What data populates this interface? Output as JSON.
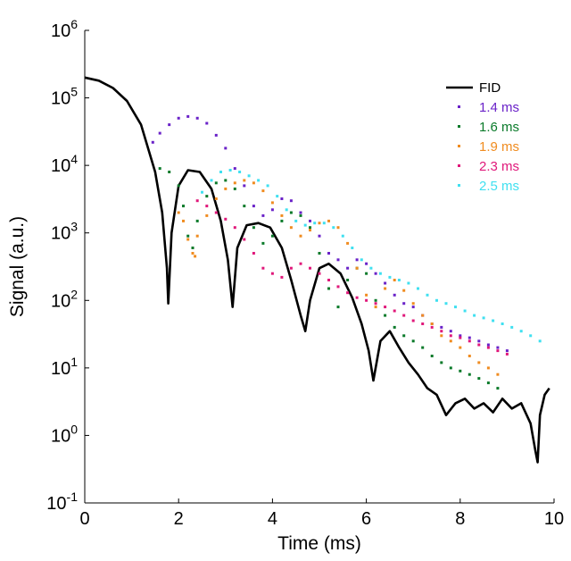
{
  "chart_data": {
    "type": "scatter",
    "title": "",
    "xlabel": "Time (ms)",
    "ylabel": "Signal (a.u.)",
    "xlim": [
      0,
      10
    ],
    "ylim_log10": [
      -1,
      6
    ],
    "y_scale": "log",
    "x_ticks": [
      0,
      2,
      4,
      6,
      8,
      10
    ],
    "y_ticks": [
      {
        "base": "10",
        "exp": "6",
        "value": 1000000
      },
      {
        "base": "10",
        "exp": "5",
        "value": 100000
      },
      {
        "base": "10",
        "exp": "4",
        "value": 10000
      },
      {
        "base": "10",
        "exp": "3",
        "value": 1000
      },
      {
        "base": "10",
        "exp": "2",
        "value": 100
      },
      {
        "base": "10",
        "exp": "1",
        "value": 10
      },
      {
        "base": "10",
        "exp": "0",
        "value": 1
      },
      {
        "base": "10",
        "exp": "-1",
        "value": 0.1
      }
    ],
    "legend_position": "top-right",
    "grid": false,
    "series": [
      {
        "name": "FID",
        "style": "line",
        "color": "#000000",
        "x": [
          0.0,
          0.3,
          0.6,
          0.9,
          1.2,
          1.5,
          1.65,
          1.75,
          1.78,
          1.85,
          2.0,
          2.2,
          2.45,
          2.7,
          2.9,
          3.05,
          3.15,
          3.25,
          3.45,
          3.7,
          3.95,
          4.2,
          4.4,
          4.6,
          4.7,
          4.8,
          5.0,
          5.2,
          5.45,
          5.7,
          5.9,
          6.05,
          6.15,
          6.3,
          6.5,
          6.7,
          6.9,
          7.1,
          7.3,
          7.5,
          7.7,
          7.9,
          8.1,
          8.3,
          8.5,
          8.7,
          8.9,
          9.1,
          9.3,
          9.5,
          9.6,
          9.65,
          9.7,
          9.8,
          9.9
        ],
        "y": [
          200000,
          180000,
          140000,
          90000,
          40000,
          8000,
          2000,
          300,
          90,
          1000,
          5000,
          8500,
          8000,
          4500,
          1500,
          400,
          80,
          600,
          1300,
          1400,
          1200,
          600,
          200,
          60,
          35,
          100,
          300,
          350,
          250,
          110,
          45,
          18,
          6.5,
          25,
          35,
          20,
          12,
          8,
          5,
          4,
          2,
          3,
          3.5,
          2.5,
          3,
          2.2,
          3.5,
          2.5,
          3,
          1.5,
          0.6,
          0.4,
          2,
          4,
          5
        ]
      },
      {
        "name": "1.4 ms",
        "style": "points",
        "color": "#6a22c8",
        "x": [
          1.45,
          1.6,
          1.8,
          2.0,
          2.2,
          2.4,
          2.6,
          2.8,
          3.0,
          3.2,
          3.4,
          3.6,
          3.8,
          4.0,
          4.2,
          4.4,
          4.6,
          4.8,
          5.0,
          5.2,
          5.4,
          5.6,
          5.8,
          6.0,
          6.2,
          6.4,
          6.6,
          6.8,
          7.0,
          7.2,
          7.4,
          7.6,
          7.8,
          8.0,
          8.2,
          8.4,
          8.6,
          8.8,
          9.0
        ],
        "y": [
          22000,
          30000,
          40000,
          50000,
          53000,
          50000,
          42000,
          28000,
          18000,
          9000,
          5000,
          2500,
          1800,
          2200,
          3200,
          3000,
          2000,
          1500,
          900,
          500,
          400,
          300,
          400,
          350,
          250,
          180,
          120,
          90,
          80,
          60,
          45,
          40,
          35,
          30,
          28,
          25,
          22,
          20,
          18
        ]
      },
      {
        "name": "1.6 ms",
        "style": "points",
        "color": "#0a7a2a",
        "x": [
          1.6,
          1.8,
          2.0,
          2.1,
          2.2,
          2.3,
          2.4,
          2.6,
          2.8,
          3.0,
          3.2,
          3.4,
          3.6,
          3.8,
          4.0,
          4.2,
          4.4,
          4.6,
          4.8,
          5.0,
          5.2,
          5.4,
          5.6,
          5.8,
          6.0,
          6.2,
          6.4,
          6.6,
          6.8,
          7.0,
          7.2,
          7.4,
          7.6,
          7.8,
          8.0,
          8.2,
          8.4,
          8.6,
          8.8
        ],
        "y": [
          9000,
          8000,
          5000,
          2500,
          900,
          600,
          1500,
          3500,
          5500,
          6000,
          4500,
          2500,
          1200,
          700,
          900,
          1500,
          2000,
          1800,
          1200,
          500,
          150,
          80,
          200,
          300,
          250,
          100,
          60,
          40,
          30,
          25,
          20,
          15,
          12,
          10,
          9,
          8,
          7,
          6,
          5
        ]
      },
      {
        "name": "1.9 ms",
        "style": "points",
        "color": "#f08c20",
        "x": [
          2.0,
          2.1,
          2.2,
          2.3,
          2.35,
          2.4,
          2.6,
          2.8,
          3.0,
          3.2,
          3.4,
          3.6,
          3.8,
          4.0,
          4.2,
          4.4,
          4.6,
          4.8,
          5.0,
          5.2,
          5.4,
          5.6,
          5.8,
          6.0,
          6.2,
          6.4,
          6.6,
          6.8,
          7.0,
          7.2,
          7.4,
          7.6,
          7.8,
          8.0,
          8.2,
          8.4,
          8.6,
          8.8
        ],
        "y": [
          2000,
          1500,
          800,
          500,
          450,
          900,
          1800,
          3200,
          4500,
          5500,
          6000,
          5500,
          4200,
          2800,
          1800,
          1200,
          900,
          1100,
          1400,
          1500,
          1200,
          700,
          300,
          120,
          80,
          150,
          200,
          140,
          90,
          60,
          45,
          30,
          25,
          20,
          15,
          12,
          10,
          8
        ]
      },
      {
        "name": "2.3 ms",
        "style": "points",
        "color": "#e0187a",
        "x": [
          2.4,
          2.6,
          2.8,
          3.0,
          3.2,
          3.4,
          3.6,
          3.8,
          4.0,
          4.2,
          4.4,
          4.6,
          4.8,
          5.0,
          5.2,
          5.4,
          5.6,
          5.8,
          6.0,
          6.2,
          6.4,
          6.6,
          6.8,
          7.0,
          7.2,
          7.4,
          7.6,
          7.8,
          8.0,
          8.2,
          8.4,
          8.6,
          8.8,
          9.0
        ],
        "y": [
          3000,
          2500,
          2000,
          1600,
          1200,
          800,
          500,
          300,
          250,
          220,
          300,
          350,
          300,
          250,
          200,
          160,
          130,
          110,
          100,
          90,
          80,
          70,
          60,
          50,
          45,
          40,
          35,
          30,
          28,
          25,
          22,
          20,
          18,
          16
        ]
      },
      {
        "name": "2.5 ms",
        "style": "points",
        "color": "#40e0f0",
        "x": [
          2.5,
          2.7,
          2.9,
          3.1,
          3.3,
          3.5,
          3.7,
          3.9,
          4.1,
          4.3,
          4.5,
          4.7,
          4.9,
          5.1,
          5.3,
          5.5,
          5.7,
          5.9,
          6.1,
          6.3,
          6.5,
          6.7,
          6.9,
          7.1,
          7.3,
          7.5,
          7.7,
          7.9,
          8.1,
          8.3,
          8.5,
          8.7,
          8.9,
          9.1,
          9.3,
          9.5,
          9.7
        ],
        "y": [
          4000,
          6000,
          8000,
          8500,
          8000,
          7000,
          6000,
          5000,
          3500,
          2200,
          1500,
          1300,
          1400,
          1400,
          1200,
          900,
          600,
          400,
          300,
          250,
          220,
          200,
          180,
          150,
          120,
          100,
          90,
          80,
          70,
          60,
          55,
          50,
          45,
          40,
          35,
          30,
          25
        ]
      }
    ]
  }
}
